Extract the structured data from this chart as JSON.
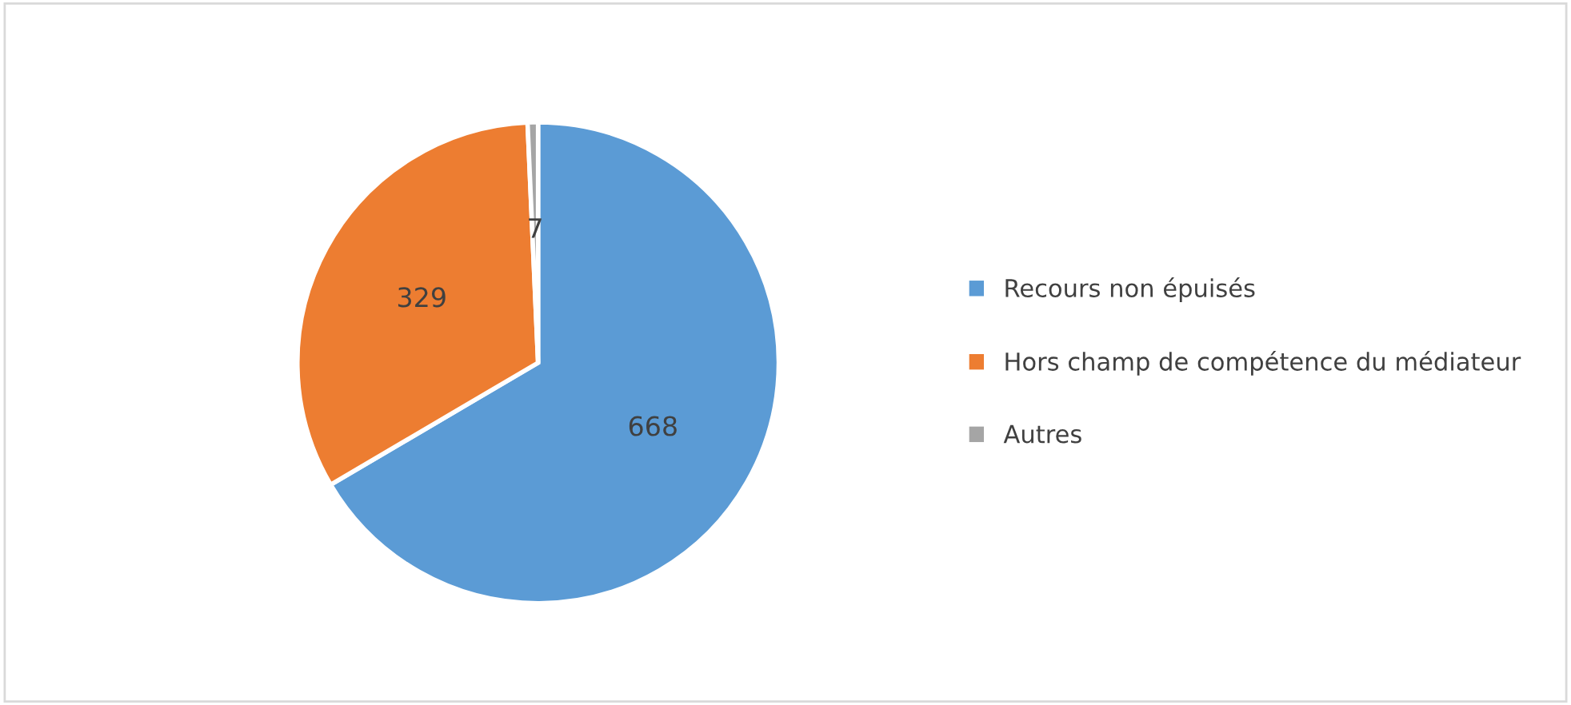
{
  "chart_data": {
    "type": "pie",
    "categories": [
      "Recours non épuisés",
      "Hors champ de compétence du médiateur",
      "Autres"
    ],
    "values": [
      668,
      329,
      7
    ],
    "colors": [
      "#5b9bd5",
      "#ed7d31",
      "#a5a5a5"
    ],
    "data_labels": true,
    "legend": "right"
  }
}
